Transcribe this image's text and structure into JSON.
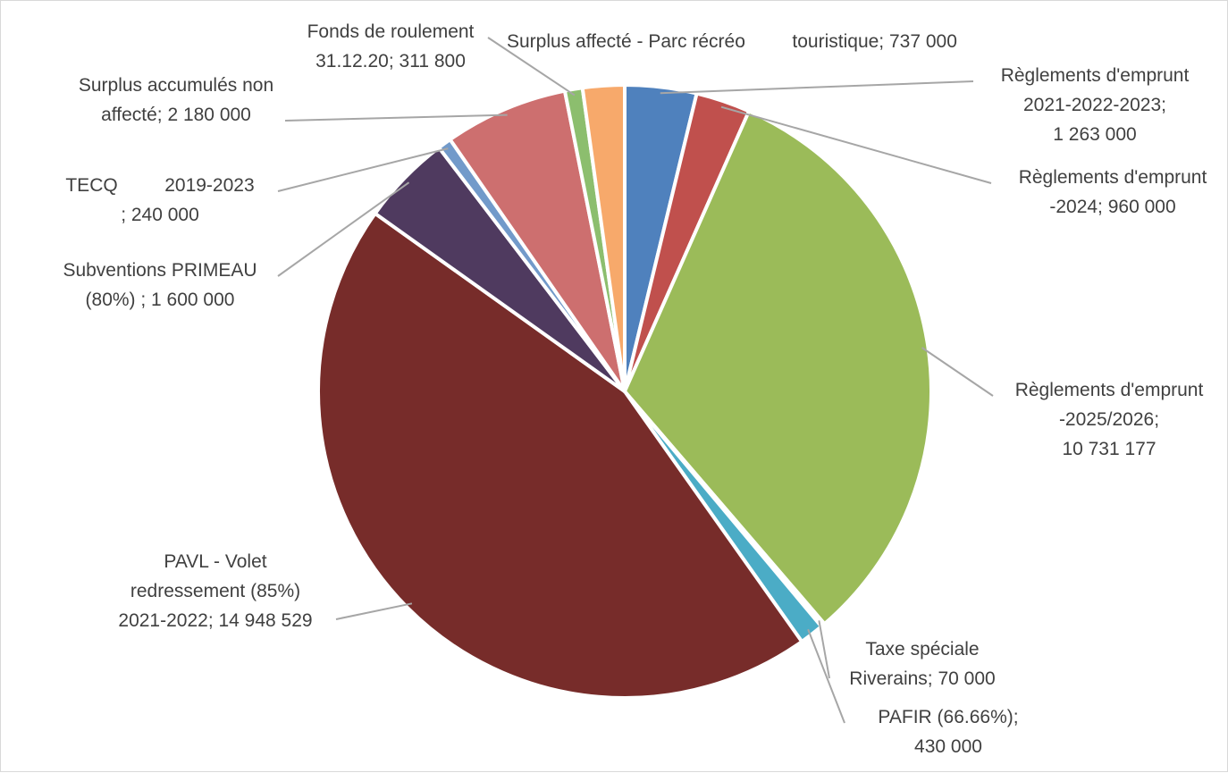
{
  "chart_data": {
    "type": "pie",
    "title": "",
    "legend": "none",
    "start": "top",
    "direction": "clockwise",
    "slices": [
      {
        "label_lines": [
          "Règlements d'emprunt",
          "2021-2022-2023;",
          "1 263 000"
        ],
        "value": 1263000,
        "color": "#4f81bd"
      },
      {
        "label_lines": [
          "Règlements d'emprunt",
          "-2024; 960 000"
        ],
        "value": 960000,
        "color": "#c0504d"
      },
      {
        "label_lines": [
          "Règlements d'emprunt",
          "-2025/2026;",
          "10 731 177"
        ],
        "value": 10731177,
        "color": "#9bbb59"
      },
      {
        "label_lines": [
          "Taxe spéciale",
          "Riverains; 70 000"
        ],
        "value": 70000,
        "color": "#ffffff"
      },
      {
        "label_lines": [
          "PAFIR (66.66%);",
          "430 000"
        ],
        "value": 430000,
        "color": "#4bacc6"
      },
      {
        "label_lines": [
          "PAVL - Volet",
          "redressement (85%)",
          "2021-2022; 14 948 529"
        ],
        "value": 14948529,
        "color": "#772c2a"
      },
      {
        "label_lines": [
          "Subventions PRIMEAU",
          "(80%) ; 1 600 000"
        ],
        "value": 1600000,
        "color": "#4f3a5f"
      },
      {
        "label_lines": [
          "TECQ         2019-2023",
          "; 240 000"
        ],
        "value": 240000,
        "color": "#729aca"
      },
      {
        "label_lines": [
          "Surplus accumulés non",
          "affecté; 2 180 000"
        ],
        "value": 2180000,
        "color": "#cd6f6f"
      },
      {
        "label_lines": [
          "Fonds de roulement",
          "31.12.20; 311 800"
        ],
        "value": 311800,
        "color": "#8cbe6e"
      },
      {
        "label_lines": [
          "Surplus affecté - Parc récréo         touristique; 737 000"
        ],
        "value": 737000,
        "color": "#f7a96b"
      }
    ]
  }
}
